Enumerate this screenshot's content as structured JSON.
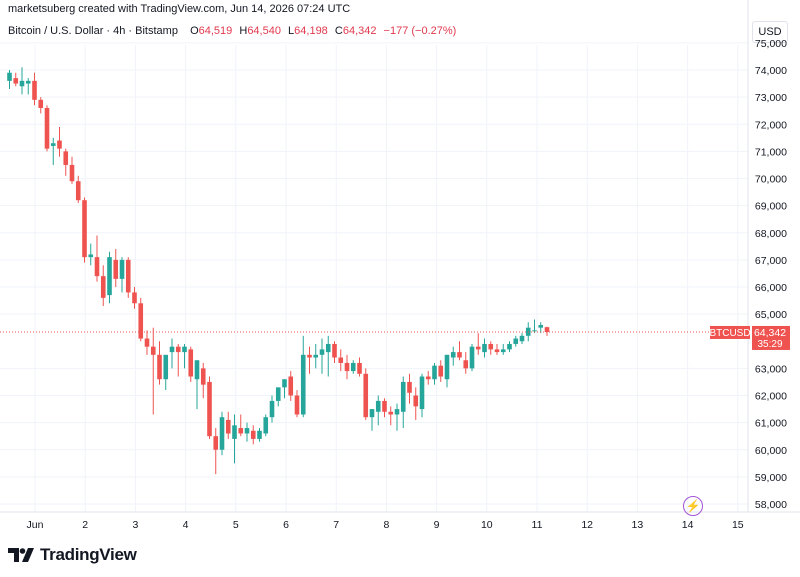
{
  "header": {
    "attribution": "marketsuberg created with TradingView.com, Jun 14, 2026 07:24 UTC"
  },
  "legend": {
    "symbol": "Bitcoin / U.S. Dollar · 4h · Bitstamp",
    "o_label": "O",
    "o_value": "64,519",
    "h_label": "H",
    "h_value": "64,540",
    "l_label": "L",
    "l_value": "64,198",
    "c_label": "C",
    "c_value": "64,342",
    "change": "−177 (−0.27%)"
  },
  "currency": "USD",
  "price_tag": {
    "symbol": "BTCUSD",
    "price": "64,342",
    "countdown": "35:29"
  },
  "brand": {
    "name": "TradingView"
  },
  "colors": {
    "up": "#26a69a",
    "down": "#ef5350",
    "grid": "#f0f3fa",
    "axis_text": "#131722",
    "last_price_line": "#ef5350",
    "bolt": "#a456d8"
  },
  "chart_data": {
    "type": "candlestick",
    "symbol": "BTCUSD",
    "interval": "4h",
    "x_tick_labels": [
      "Jun",
      "2",
      "3",
      "4",
      "5",
      "6",
      "7",
      "8",
      "9",
      "10",
      "11",
      "12",
      "13",
      "14",
      "15"
    ],
    "y_tick_labels": [
      "75,000",
      "74,000",
      "73,000",
      "72,000",
      "71,000",
      "70,000",
      "69,000",
      "68,000",
      "67,000",
      "66,000",
      "65,000",
      "63,000",
      "62,000",
      "61,000",
      "60,000",
      "59,000",
      "58,000"
    ],
    "y_ticks": [
      75000,
      74000,
      73000,
      72000,
      71000,
      70000,
      69000,
      68000,
      67000,
      66000,
      65000,
      63000,
      62000,
      61000,
      60000,
      59000,
      58000
    ],
    "ylim": [
      57500,
      75700
    ],
    "last_price": 64342,
    "grid": true,
    "candles": [
      {
        "o": 73600,
        "h": 74000,
        "l": 73300,
        "c": 73900
      },
      {
        "o": 73700,
        "h": 73900,
        "l": 73400,
        "c": 73500
      },
      {
        "o": 73400,
        "h": 74100,
        "l": 73100,
        "c": 73600
      },
      {
        "o": 73500,
        "h": 73700,
        "l": 73100,
        "c": 73600
      },
      {
        "o": 73600,
        "h": 73900,
        "l": 72700,
        "c": 72900
      },
      {
        "o": 72900,
        "h": 73000,
        "l": 72400,
        "c": 72600
      },
      {
        "o": 72600,
        "h": 72700,
        "l": 71000,
        "c": 71100
      },
      {
        "o": 71200,
        "h": 71500,
        "l": 70500,
        "c": 71300
      },
      {
        "o": 71400,
        "h": 71900,
        "l": 70800,
        "c": 71100
      },
      {
        "o": 71000,
        "h": 71100,
        "l": 70100,
        "c": 70500
      },
      {
        "o": 70500,
        "h": 70800,
        "l": 69800,
        "c": 69900
      },
      {
        "o": 69900,
        "h": 70100,
        "l": 69100,
        "c": 69200
      },
      {
        "o": 69200,
        "h": 69300,
        "l": 66900,
        "c": 67100
      },
      {
        "o": 67100,
        "h": 67600,
        "l": 66800,
        "c": 67200
      },
      {
        "o": 67100,
        "h": 67900,
        "l": 66200,
        "c": 66400
      },
      {
        "o": 66400,
        "h": 66800,
        "l": 65300,
        "c": 65600
      },
      {
        "o": 65700,
        "h": 67300,
        "l": 65400,
        "c": 67100
      },
      {
        "o": 67000,
        "h": 67400,
        "l": 66000,
        "c": 66300
      },
      {
        "o": 66300,
        "h": 67100,
        "l": 65800,
        "c": 67000
      },
      {
        "o": 67000,
        "h": 67100,
        "l": 65600,
        "c": 65800
      },
      {
        "o": 65800,
        "h": 66000,
        "l": 65200,
        "c": 65400
      },
      {
        "o": 65400,
        "h": 65600,
        "l": 64000,
        "c": 64100
      },
      {
        "o": 64100,
        "h": 64400,
        "l": 63500,
        "c": 63800
      },
      {
        "o": 63800,
        "h": 64500,
        "l": 61300,
        "c": 63500
      },
      {
        "o": 63500,
        "h": 64000,
        "l": 62400,
        "c": 62600
      },
      {
        "o": 62600,
        "h": 63400,
        "l": 62200,
        "c": 63500
      },
      {
        "o": 63600,
        "h": 64100,
        "l": 63000,
        "c": 63800
      },
      {
        "o": 63800,
        "h": 63900,
        "l": 62700,
        "c": 63600
      },
      {
        "o": 63600,
        "h": 63900,
        "l": 63000,
        "c": 63800
      },
      {
        "o": 63700,
        "h": 63800,
        "l": 62500,
        "c": 62700
      },
      {
        "o": 62600,
        "h": 63300,
        "l": 61500,
        "c": 63300
      },
      {
        "o": 63000,
        "h": 63200,
        "l": 61900,
        "c": 62400
      },
      {
        "o": 62500,
        "h": 62700,
        "l": 60400,
        "c": 60500
      },
      {
        "o": 60500,
        "h": 60800,
        "l": 59100,
        "c": 60000
      },
      {
        "o": 60000,
        "h": 61400,
        "l": 59800,
        "c": 61200
      },
      {
        "o": 61100,
        "h": 61400,
        "l": 60400,
        "c": 60600
      },
      {
        "o": 60400,
        "h": 61300,
        "l": 59500,
        "c": 60900
      },
      {
        "o": 60800,
        "h": 61300,
        "l": 60500,
        "c": 60600
      },
      {
        "o": 60600,
        "h": 61000,
        "l": 60300,
        "c": 60800
      },
      {
        "o": 60700,
        "h": 60900,
        "l": 60200,
        "c": 60400
      },
      {
        "o": 60400,
        "h": 60800,
        "l": 60300,
        "c": 60700
      },
      {
        "o": 60600,
        "h": 61300,
        "l": 60500,
        "c": 61200
      },
      {
        "o": 61200,
        "h": 62000,
        "l": 61000,
        "c": 61800
      },
      {
        "o": 61800,
        "h": 62300,
        "l": 61600,
        "c": 62300
      },
      {
        "o": 62300,
        "h": 62600,
        "l": 61900,
        "c": 62600
      },
      {
        "o": 62700,
        "h": 62900,
        "l": 61800,
        "c": 62000
      },
      {
        "o": 62000,
        "h": 62200,
        "l": 61200,
        "c": 61300
      },
      {
        "o": 61300,
        "h": 64200,
        "l": 61200,
        "c": 63500
      },
      {
        "o": 63500,
        "h": 63800,
        "l": 62800,
        "c": 63400
      },
      {
        "o": 63400,
        "h": 63900,
        "l": 63000,
        "c": 63500
      },
      {
        "o": 63500,
        "h": 64100,
        "l": 62800,
        "c": 63700
      },
      {
        "o": 63600,
        "h": 64200,
        "l": 62700,
        "c": 63900
      },
      {
        "o": 63900,
        "h": 64000,
        "l": 63200,
        "c": 63400
      },
      {
        "o": 63400,
        "h": 63700,
        "l": 62900,
        "c": 63200
      },
      {
        "o": 63200,
        "h": 63500,
        "l": 62600,
        "c": 62900
      },
      {
        "o": 62900,
        "h": 63300,
        "l": 62800,
        "c": 63200
      },
      {
        "o": 63200,
        "h": 63400,
        "l": 62700,
        "c": 62800
      },
      {
        "o": 62800,
        "h": 63000,
        "l": 61100,
        "c": 61200
      },
      {
        "o": 61200,
        "h": 61500,
        "l": 60700,
        "c": 61500
      },
      {
        "o": 61400,
        "h": 62000,
        "l": 60900,
        "c": 61800
      },
      {
        "o": 61800,
        "h": 61900,
        "l": 61200,
        "c": 61400
      },
      {
        "o": 61400,
        "h": 61600,
        "l": 60900,
        "c": 61300
      },
      {
        "o": 61300,
        "h": 61700,
        "l": 60700,
        "c": 61500
      },
      {
        "o": 61400,
        "h": 62700,
        "l": 60800,
        "c": 62500
      },
      {
        "o": 62500,
        "h": 62800,
        "l": 61700,
        "c": 62100
      },
      {
        "o": 62000,
        "h": 62300,
        "l": 61100,
        "c": 61600
      },
      {
        "o": 61500,
        "h": 62800,
        "l": 61200,
        "c": 62700
      },
      {
        "o": 62700,
        "h": 62900,
        "l": 62400,
        "c": 62600
      },
      {
        "o": 62600,
        "h": 63200,
        "l": 62400,
        "c": 63100
      },
      {
        "o": 63100,
        "h": 63300,
        "l": 62500,
        "c": 62700
      },
      {
        "o": 62600,
        "h": 63500,
        "l": 62300,
        "c": 63500
      },
      {
        "o": 63400,
        "h": 63800,
        "l": 63100,
        "c": 63600
      },
      {
        "o": 63600,
        "h": 64000,
        "l": 63300,
        "c": 63400
      },
      {
        "o": 63300,
        "h": 63600,
        "l": 62800,
        "c": 63000
      },
      {
        "o": 63000,
        "h": 63900,
        "l": 62900,
        "c": 63800
      },
      {
        "o": 63800,
        "h": 64300,
        "l": 63500,
        "c": 63700
      },
      {
        "o": 63600,
        "h": 64100,
        "l": 63400,
        "c": 63900
      },
      {
        "o": 63900,
        "h": 64000,
        "l": 63500,
        "c": 63700
      },
      {
        "o": 63700,
        "h": 63900,
        "l": 63500,
        "c": 63600
      },
      {
        "o": 63600,
        "h": 63900,
        "l": 63500,
        "c": 63700
      },
      {
        "o": 63700,
        "h": 64000,
        "l": 63600,
        "c": 63900
      },
      {
        "o": 63900,
        "h": 64200,
        "l": 63800,
        "c": 64100
      },
      {
        "o": 64000,
        "h": 64300,
        "l": 63900,
        "c": 64200
      },
      {
        "o": 64200,
        "h": 64700,
        "l": 64000,
        "c": 64500
      },
      {
        "o": 64400,
        "h": 64800,
        "l": 64300,
        "c": 64400
      },
      {
        "o": 64500,
        "h": 64700,
        "l": 64300,
        "c": 64600
      },
      {
        "o": 64519,
        "h": 64540,
        "l": 64198,
        "c": 64342
      }
    ]
  }
}
